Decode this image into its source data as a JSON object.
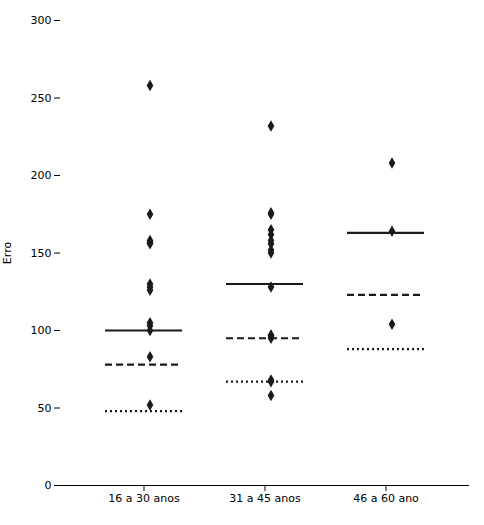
{
  "chart_data": {
    "type": "strip",
    "ylabel": "Erro",
    "ylim": [
      0,
      300
    ],
    "yticks": [
      0,
      50,
      100,
      150,
      200,
      250,
      300
    ],
    "grid": false,
    "categories": [
      "16 a 30 anos",
      "31 a 45 anos",
      "46 a 60 ano"
    ],
    "color": "#1a1a1a",
    "marker": "diamond",
    "values": [
      [
        258,
        175,
        158,
        157,
        156,
        130,
        128,
        126,
        105,
        103,
        100,
        83,
        52
      ],
      [
        232,
        176,
        175,
        165,
        162,
        158,
        156,
        152,
        150,
        128,
        97,
        97,
        96,
        95,
        68,
        67,
        58
      ],
      [
        208,
        164,
        104
      ]
    ],
    "lines": [
      {
        "line_style": "solid",
        "color": "#1a1a1a",
        "values": [
          100,
          130,
          163
        ]
      },
      {
        "line_style": "dashed",
        "color": "#1a1a1a",
        "values": [
          78,
          95,
          123
        ]
      },
      {
        "line_style": "dotted",
        "color": "#1a1a1a",
        "values": [
          48,
          67,
          88
        ]
      }
    ]
  }
}
